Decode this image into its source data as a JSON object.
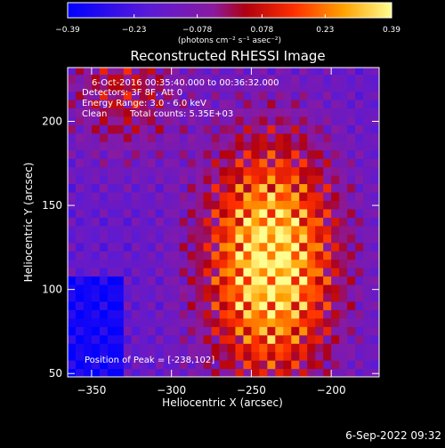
{
  "chart_data": {
    "type": "heatmap",
    "title": "Reconstructed RHESSI Image",
    "xlabel": "Heliocentric X (arcsec)",
    "ylabel": "Heliocentric Y (arcsec)",
    "xlim": [
      -365,
      -170
    ],
    "ylim": [
      48,
      232
    ],
    "xticks": [
      -350,
      -300,
      -250,
      -200
    ],
    "xtick_labels": [
      "−350",
      "−300",
      "−250",
      "−200"
    ],
    "yticks": [
      50,
      100,
      150,
      200
    ],
    "ytick_labels": [
      "50",
      "100",
      "150",
      "200"
    ],
    "colorbar": {
      "min": -0.39,
      "max": 0.39,
      "ticks": [
        -0.39,
        -0.23,
        -0.078,
        0.078,
        0.23,
        0.39
      ],
      "tick_labels": [
        "−0.39",
        "−0.23",
        "−0.078",
        "0.078",
        "0.23",
        "0.39"
      ],
      "units_label": "(photons cm⁻² s⁻¹ asec⁻²)"
    },
    "peak": [
      -238,
      102
    ],
    "annotations": {
      "time_range": "6-Oct-2016 00:35:40.000 to 00:36:32.000",
      "detectors": "Detectors: 3F 8F, Att 0",
      "energy_range": "Energy Range: 3.0 - 6.0 keV",
      "clean": "Clean",
      "total_counts": "Total counts: 5.35E+03",
      "peak_position": "Position of Peak = [-238,102]"
    }
  },
  "footer": {
    "timestamp": "6-Sep-2022 09:32"
  }
}
